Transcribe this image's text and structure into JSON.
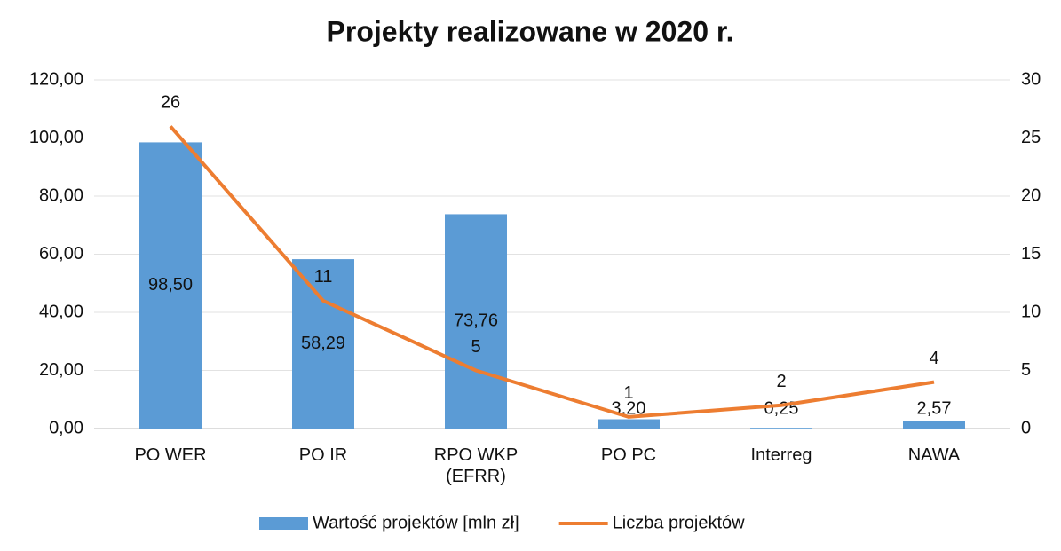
{
  "chart_data": {
    "type": "bar+line",
    "title": "Projekty realizowane w 2020 r.",
    "categories": [
      "PO WER",
      "PO IR",
      "RPO WKP (EFRR)",
      "PO PC",
      "Interreg",
      "NAWA"
    ],
    "series": [
      {
        "name": "Wartość projektów [mln zł]",
        "type": "bar",
        "color": "#5b9bd5",
        "values": [
          98.5,
          58.29,
          73.76,
          3.2,
          0.25,
          2.57
        ],
        "value_labels": [
          "98,50",
          "58,29",
          "73,76",
          "3,20",
          "0,25",
          "2,57"
        ]
      },
      {
        "name": "Liczba projektów",
        "type": "line",
        "color": "#ed7d31",
        "axis": "y2",
        "values": [
          26,
          11,
          5,
          1,
          2,
          4
        ]
      }
    ],
    "ylim": [
      0,
      120
    ],
    "yticks": [
      {
        "value": 0,
        "label": "0,00"
      },
      {
        "value": 20,
        "label": "20,00"
      },
      {
        "value": 40,
        "label": "40,00"
      },
      {
        "value": 60,
        "label": "60,00"
      },
      {
        "value": 80,
        "label": "80,00"
      },
      {
        "value": 100,
        "label": "100,00"
      },
      {
        "value": 120,
        "label": "120,00"
      }
    ],
    "y2lim": [
      0,
      30
    ],
    "y2ticks": [
      0,
      5,
      10,
      15,
      20,
      25,
      30
    ],
    "grid": true,
    "legend": "bottom"
  }
}
